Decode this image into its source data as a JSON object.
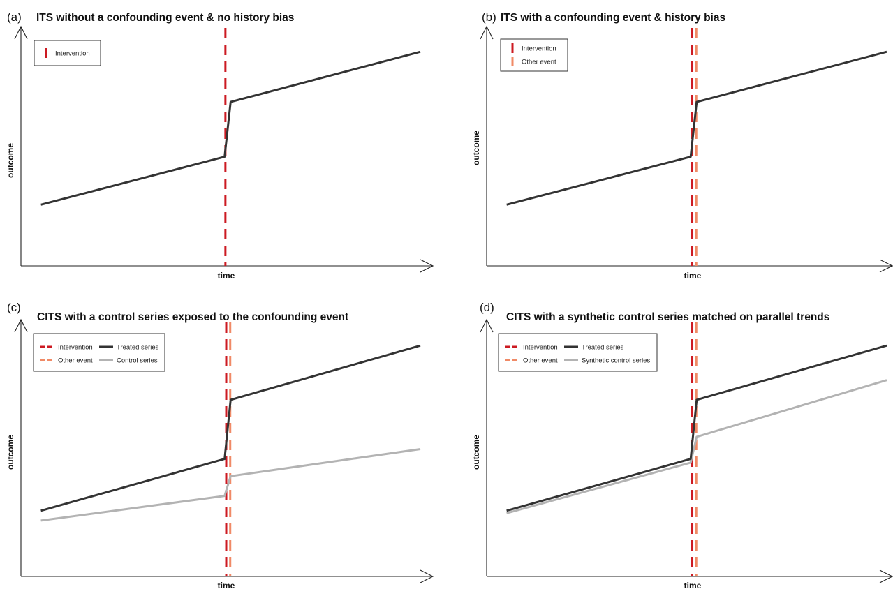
{
  "colors": {
    "intervention": "#cc1a22",
    "other_event": "#f08a66",
    "treated": "#333333",
    "control": "#b3b3b3"
  },
  "chart_data": [
    {
      "type": "line",
      "panel_label": "(a)",
      "title": "ITS without a confounding event & no history bias",
      "xlabel": "time",
      "ylabel": "outcome",
      "xlim": [
        0,
        100
      ],
      "ylim": [
        0,
        100
      ],
      "legend": {
        "position": "top-left",
        "entries": [
          {
            "label": "Intervention",
            "type": "intervention"
          }
        ]
      },
      "vlines": [
        {
          "type": "intervention",
          "x": 51.2
        }
      ],
      "series": [
        {
          "type": "treated",
          "x": [
            5,
            51,
            52.5,
            100
          ],
          "y": [
            25,
            46,
            70,
            92
          ]
        }
      ]
    },
    {
      "type": "line",
      "panel_label": "(b)",
      "title": "ITS with a confounding event & history bias",
      "xlabel": "time",
      "ylabel": "outcome",
      "xlim": [
        0,
        100
      ],
      "ylim": [
        0,
        100
      ],
      "legend": {
        "position": "top-left",
        "entries": [
          {
            "label": "Intervention",
            "type": "intervention"
          },
          {
            "label": "Other event",
            "type": "other_event"
          }
        ]
      },
      "vlines": [
        {
          "type": "other_event",
          "x": 52.4
        },
        {
          "type": "intervention",
          "x": 51.4
        }
      ],
      "series": [
        {
          "type": "treated",
          "x": [
            5,
            51,
            52.5,
            100
          ],
          "y": [
            25,
            46,
            70,
            92
          ]
        }
      ]
    },
    {
      "type": "line",
      "panel_label": "(c)",
      "title": "CITS with a control series exposed to the confounding event",
      "xlabel": "time",
      "ylabel": "outcome",
      "xlim": [
        0,
        100
      ],
      "ylim": [
        0,
        100
      ],
      "legend": {
        "position": "top-left",
        "entries": [
          {
            "label": "Intervention",
            "type": "intervention"
          },
          {
            "label": "Treated series",
            "type": "treated"
          },
          {
            "label": "Other event",
            "type": "other_event"
          },
          {
            "label": "Control series",
            "type": "control"
          }
        ]
      },
      "vlines": [
        {
          "type": "other_event",
          "x": 52.4
        },
        {
          "type": "intervention",
          "x": 51.4
        }
      ],
      "series": [
        {
          "name": "Treated series",
          "type": "treated",
          "x": [
            5,
            51,
            52.5,
            100
          ],
          "y": [
            25,
            46,
            70,
            92
          ]
        },
        {
          "name": "Control series",
          "type": "control",
          "x": [
            5,
            51,
            52.5,
            100
          ],
          "y": [
            21,
            31,
            39,
            50
          ]
        }
      ]
    },
    {
      "type": "line",
      "panel_label": "(d)",
      "title": "CITS with a synthetic control series matched on parallel trends",
      "xlabel": "time",
      "ylabel": "outcome",
      "xlim": [
        0,
        100
      ],
      "ylim": [
        0,
        100
      ],
      "legend": {
        "position": "top-left",
        "entries": [
          {
            "label": "Intervention",
            "type": "intervention"
          },
          {
            "label": "Treated series",
            "type": "treated"
          },
          {
            "label": "Other event",
            "type": "other_event"
          },
          {
            "label": "Synthetic control series",
            "type": "control"
          }
        ]
      },
      "vlines": [
        {
          "type": "other_event",
          "x": 52.4
        },
        {
          "type": "intervention",
          "x": 51.4
        }
      ],
      "series": [
        {
          "name": "Treated series",
          "type": "treated",
          "x": [
            5,
            51,
            52.5,
            100
          ],
          "y": [
            25,
            46,
            70,
            92
          ]
        },
        {
          "name": "Synthetic control series",
          "type": "control",
          "x": [
            5,
            51,
            52.5,
            100
          ],
          "y": [
            24,
            44.5,
            55,
            78
          ]
        }
      ]
    }
  ]
}
